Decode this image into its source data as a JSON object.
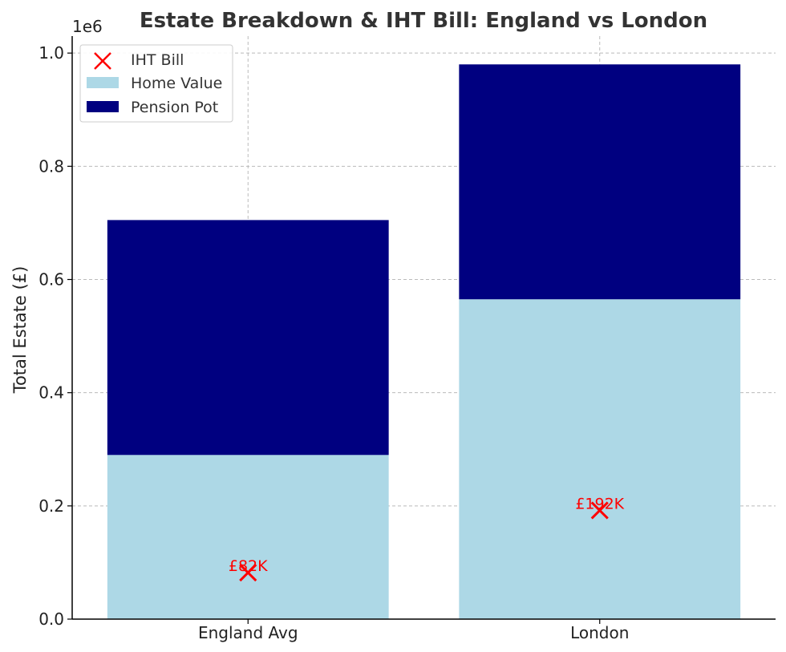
{
  "chart_data": {
    "type": "bar",
    "stacked": true,
    "title": "Estate Breakdown & IHT Bill: England vs London",
    "xlabel": "",
    "ylabel": "Total Estate (£)",
    "y_offset_label": "1e6",
    "categories": [
      "England Avg",
      "London"
    ],
    "ylim": [
      0,
      1030000
    ],
    "yticks": [
      0,
      200000,
      400000,
      600000,
      800000,
      1000000
    ],
    "ytick_labels": [
      "0.0",
      "0.2",
      "0.4",
      "0.6",
      "0.8",
      "1.0"
    ],
    "grid": true,
    "legend_position": "top-left",
    "series": [
      {
        "name": "Home Value",
        "values": [
          290000,
          565000
        ],
        "color": "#add8e6"
      },
      {
        "name": "Pension Pot",
        "values": [
          415000,
          415000
        ],
        "color": "#000080"
      }
    ],
    "markers": {
      "name": "IHT Bill",
      "values": [
        82000,
        192000
      ],
      "labels": [
        "£82K",
        "£192K"
      ],
      "color": "#ff0000"
    }
  }
}
